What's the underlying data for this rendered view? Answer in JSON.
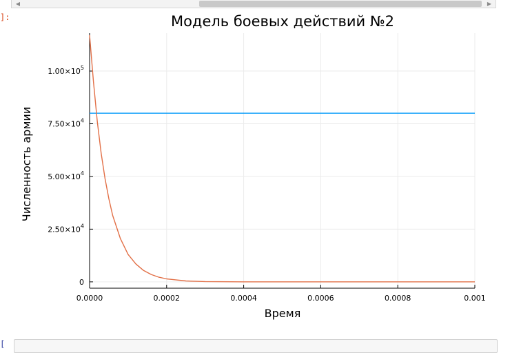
{
  "notebook": {
    "output_prompt": "]:",
    "next_prompt": "["
  },
  "chart_data": {
    "type": "line",
    "title": "Модель боевых действий №2",
    "xlabel": "Время",
    "ylabel": "Численность армии",
    "xlim": [
      0,
      0.001
    ],
    "ylim": [
      -3000,
      118000
    ],
    "grid": true,
    "legend": "none",
    "x_ticks": [
      {
        "value": 0,
        "label": "0.0000"
      },
      {
        "value": 0.0002,
        "label": "0.0002"
      },
      {
        "value": 0.0004,
        "label": "0.0004"
      },
      {
        "value": 0.0006,
        "label": "0.0006"
      },
      {
        "value": 0.0008,
        "label": "0.0008"
      },
      {
        "value": 0.001,
        "label": "0.001"
      }
    ],
    "y_ticks": [
      {
        "value": 0,
        "mant": "0",
        "exp": ""
      },
      {
        "value": 25000,
        "mant": "2.50×10",
        "exp": "4"
      },
      {
        "value": 50000,
        "mant": "5.00×10",
        "exp": "4"
      },
      {
        "value": 75000,
        "mant": "7.50×10",
        "exp": "4"
      },
      {
        "value": 100000,
        "mant": "1.00×10",
        "exp": "5"
      }
    ],
    "series": [
      {
        "color": "#009af9",
        "x": [
          0,
          0.0001,
          0.0002,
          0.0003,
          0.0004,
          0.0005,
          0.0006,
          0.0007,
          0.0008,
          0.0009,
          0.001
        ],
        "y": [
          80000,
          80000,
          80000,
          80000,
          80000,
          80000,
          80000,
          80000,
          80000,
          80000,
          80000
        ]
      },
      {
        "color": "#e26f46",
        "x": [
          0,
          1e-05,
          2e-05,
          3e-05,
          4e-05,
          5e-05,
          6e-05,
          8e-05,
          0.0001,
          0.00012,
          0.00014,
          0.00016,
          0.00018,
          0.0002,
          0.00025,
          0.0003,
          0.0004,
          0.0006,
          0.0008,
          0.001
        ],
        "y": [
          117000,
          95000,
          76000,
          61000,
          49000,
          39500,
          31500,
          20500,
          13000,
          8500,
          5400,
          3500,
          2200,
          1400,
          450,
          150,
          20,
          0,
          0,
          0
        ]
      }
    ]
  }
}
